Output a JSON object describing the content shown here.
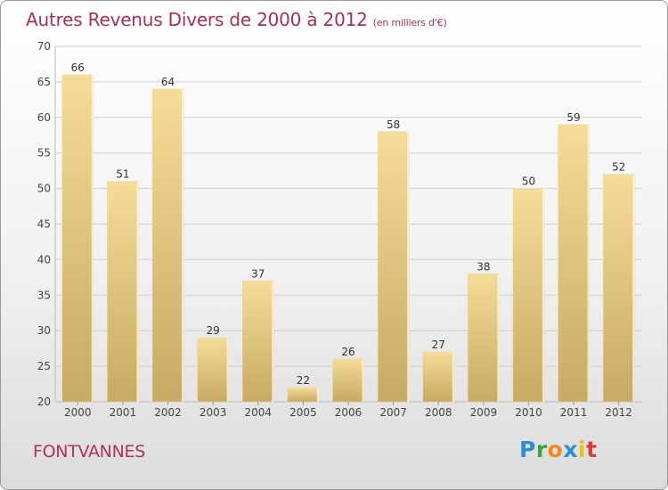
{
  "title": "Autres Revenus Divers de 2000 à 2012",
  "subtitle": "(en milliers d'€)",
  "commune": "FONTVANNES",
  "logo": {
    "letters": [
      "P",
      "r",
      "o",
      "x",
      "i",
      "t"
    ],
    "colors": [
      "#2e8fd0",
      "#3aa53c",
      "#f08a1c",
      "#2e8fd0",
      "#e8c21a",
      "#d93a3a"
    ]
  },
  "colors": {
    "bar_light": "#f5dc98",
    "bar_dark": "#c7aa63",
    "title": "#a6305a"
  },
  "chart_data": {
    "type": "bar",
    "title": "Autres Revenus Divers de 2000 à 2012",
    "subtitle": "(en milliers d'€)",
    "categories": [
      "2000",
      "2001",
      "2002",
      "2003",
      "2004",
      "2005",
      "2006",
      "2007",
      "2008",
      "2009",
      "2010",
      "2011",
      "2012"
    ],
    "values": [
      66,
      51,
      64,
      29,
      37,
      22,
      26,
      58,
      27,
      38,
      50,
      59,
      52
    ],
    "ylim": [
      20,
      70
    ],
    "yticks": [
      20,
      25,
      30,
      35,
      40,
      45,
      50,
      55,
      60,
      65,
      70
    ],
    "grid": true,
    "xlabel": "",
    "ylabel": ""
  }
}
